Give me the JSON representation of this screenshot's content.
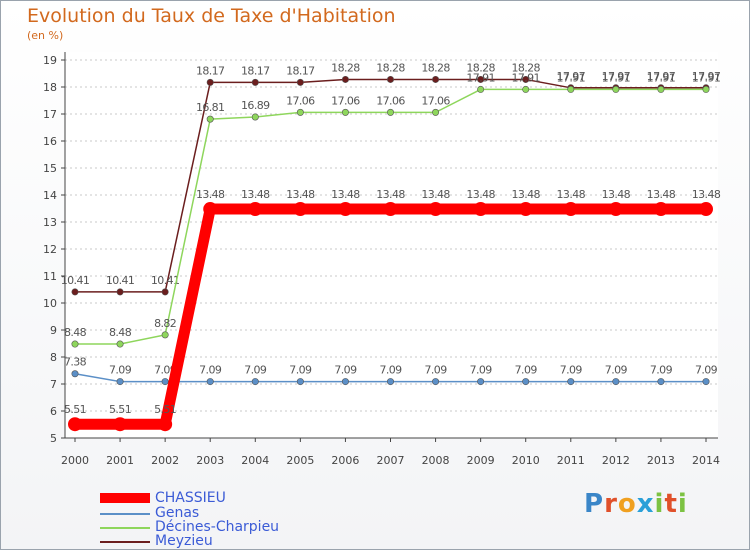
{
  "header": {
    "title": "Evolution du Taux de Taxe d'Habitation",
    "unit": "(en %)"
  },
  "chart_data": {
    "type": "line",
    "title": "Evolution du Taux de Taxe d'Habitation",
    "ylabel": "(en %)",
    "xlabel": "",
    "categories": [
      "2000",
      "2001",
      "2002",
      "2003",
      "2004",
      "2005",
      "2006",
      "2007",
      "2008",
      "2009",
      "2010",
      "2011",
      "2012",
      "2013",
      "2014"
    ],
    "ylim": [
      5,
      19
    ],
    "yticks": [
      5,
      6,
      7,
      8,
      9,
      10,
      11,
      12,
      13,
      14,
      15,
      16,
      17,
      18,
      19
    ],
    "grid": "horizontal-dashed",
    "series": [
      {
        "name": "Meyzieu",
        "color": "#6b1e1e",
        "values": [
          10.41,
          10.41,
          10.41,
          18.17,
          18.17,
          18.17,
          18.28,
          18.28,
          18.28,
          18.28,
          18.28,
          17.97,
          17.97,
          17.97,
          17.97
        ],
        "labels": [
          "10.41",
          "10.41",
          "10.41",
          "18.17",
          "18.17",
          "18.17",
          "18.28",
          "18.28",
          "18.28",
          "18.28",
          "18.28",
          "17.97",
          "17.97",
          "17.97",
          "17.97"
        ]
      },
      {
        "name": "Décines-Charpieu",
        "color": "#8ed65c",
        "values": [
          8.48,
          8.48,
          8.82,
          16.81,
          16.89,
          17.06,
          17.06,
          17.06,
          17.06,
          17.91,
          17.91,
          17.91,
          17.91,
          17.91,
          17.91
        ],
        "labels": [
          "8.48",
          "8.48",
          "8.82",
          "16.81",
          "16.89",
          "17.06",
          "17.06",
          "17.06",
          "17.06",
          "17.91",
          "17.91",
          "17.91",
          "17.91",
          "17.91",
          "17.91"
        ]
      },
      {
        "name": "Genas",
        "color": "#5b8fc7",
        "values": [
          7.38,
          7.09,
          7.09,
          7.09,
          7.09,
          7.09,
          7.09,
          7.09,
          7.09,
          7.09,
          7.09,
          7.09,
          7.09,
          7.09,
          7.09
        ],
        "labels": [
          "7.38",
          "7.09",
          "7.09",
          "7.09",
          "7.09",
          "7.09",
          "7.09",
          "7.09",
          "7.09",
          "7.09",
          "7.09",
          "7.09",
          "7.09",
          "7.09",
          "7.09"
        ]
      },
      {
        "name": "CHASSIEU",
        "color": "#ff0000",
        "values": [
          5.51,
          5.51,
          5.51,
          13.48,
          13.48,
          13.48,
          13.48,
          13.48,
          13.48,
          13.48,
          13.48,
          13.48,
          13.48,
          13.48,
          13.48
        ],
        "labels": [
          "5.51",
          "5.51",
          "5.51",
          "13.48",
          "13.48",
          "13.48",
          "13.48",
          "13.48",
          "13.48",
          "13.48",
          "13.48",
          "13.48",
          "13.48",
          "13.48",
          "13.48"
        ]
      }
    ],
    "legend": [
      "CHASSIEU",
      "Genas",
      "Décines-Charpieu",
      "Meyzieu"
    ]
  },
  "brand": {
    "logo_text": "Proxiti"
  }
}
